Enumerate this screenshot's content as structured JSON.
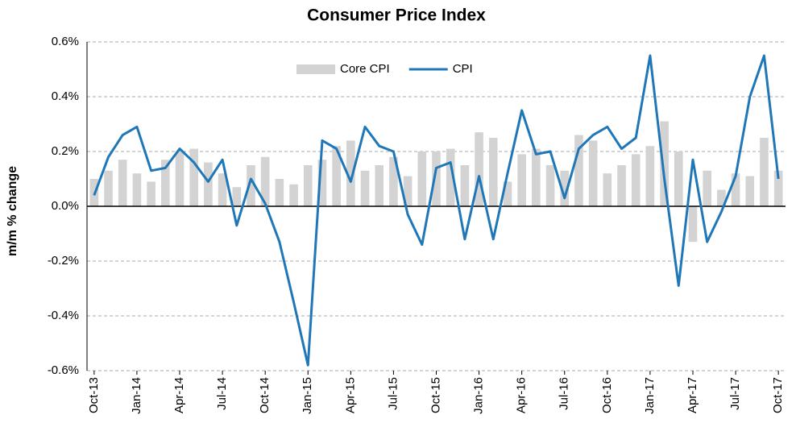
{
  "chart_data": {
    "type": "bar_line",
    "title": "Consumer  Price Index",
    "y_label": "m/m % change",
    "categories": [
      "Oct-13",
      null,
      null,
      "Jan-14",
      null,
      null,
      "Apr-14",
      null,
      null,
      "Jul-14",
      null,
      null,
      "Oct-14",
      null,
      null,
      "Jan-15",
      null,
      null,
      "Apr-15",
      null,
      null,
      "Jul-15",
      null,
      null,
      "Oct-15",
      null,
      null,
      "Jan-16",
      null,
      null,
      "Apr-16",
      null,
      null,
      "Jul-16",
      null,
      null,
      "Oct-16",
      null,
      null,
      "Jan-17",
      null,
      null,
      "Apr-17",
      null,
      null,
      "Jul-17",
      null,
      null,
      "Oct-17"
    ],
    "series": [
      {
        "name": "Core CPI",
        "type": "bar",
        "color": "#d3d3d3",
        "values": [
          0.1,
          0.13,
          0.17,
          0.12,
          0.09,
          0.17,
          0.2,
          0.21,
          0.16,
          0.12,
          0.07,
          0.15,
          0.18,
          0.1,
          0.08,
          0.15,
          0.17,
          0.22,
          0.24,
          0.13,
          0.15,
          0.18,
          0.11,
          0.2,
          0.2,
          0.21,
          0.15,
          0.27,
          0.25,
          0.09,
          0.19,
          0.21,
          0.15,
          0.13,
          0.26,
          0.24,
          0.12,
          0.15,
          0.19,
          0.22,
          0.31,
          0.2,
          -0.13,
          0.13,
          0.06,
          0.12,
          0.11,
          0.25,
          0.13
        ]
      },
      {
        "name": "CPI",
        "type": "line",
        "color": "#1f77b8",
        "values": [
          0.04,
          0.18,
          0.26,
          0.29,
          0.13,
          0.14,
          0.21,
          0.16,
          0.09,
          0.17,
          -0.07,
          0.1,
          0.01,
          -0.13,
          -0.35,
          -0.58,
          0.24,
          0.21,
          0.09,
          0.29,
          0.22,
          0.2,
          -0.03,
          -0.14,
          0.14,
          0.16,
          -0.12,
          0.11,
          -0.12,
          0.12,
          0.35,
          0.19,
          0.2,
          0.03,
          0.21,
          0.26,
          0.29,
          0.21,
          0.25,
          0.55,
          0.1,
          -0.29,
          0.17,
          -0.13,
          -0.02,
          0.11,
          0.4,
          0.55,
          0.1
        ]
      }
    ],
    "ylim": [
      -0.6,
      0.6
    ],
    "yticks": [
      {
        "value": -0.6,
        "label": "-0.6%"
      },
      {
        "value": -0.4,
        "label": "-0.4%"
      },
      {
        "value": -0.2,
        "label": "-0.2%"
      },
      {
        "value": 0,
        "label": "0.0%"
      },
      {
        "value": 0.2,
        "label": "0.2%"
      },
      {
        "value": 0.4,
        "label": "0.4%"
      },
      {
        "value": 0.6,
        "label": "0.6%"
      }
    ],
    "grid": true,
    "legend": "top"
  }
}
